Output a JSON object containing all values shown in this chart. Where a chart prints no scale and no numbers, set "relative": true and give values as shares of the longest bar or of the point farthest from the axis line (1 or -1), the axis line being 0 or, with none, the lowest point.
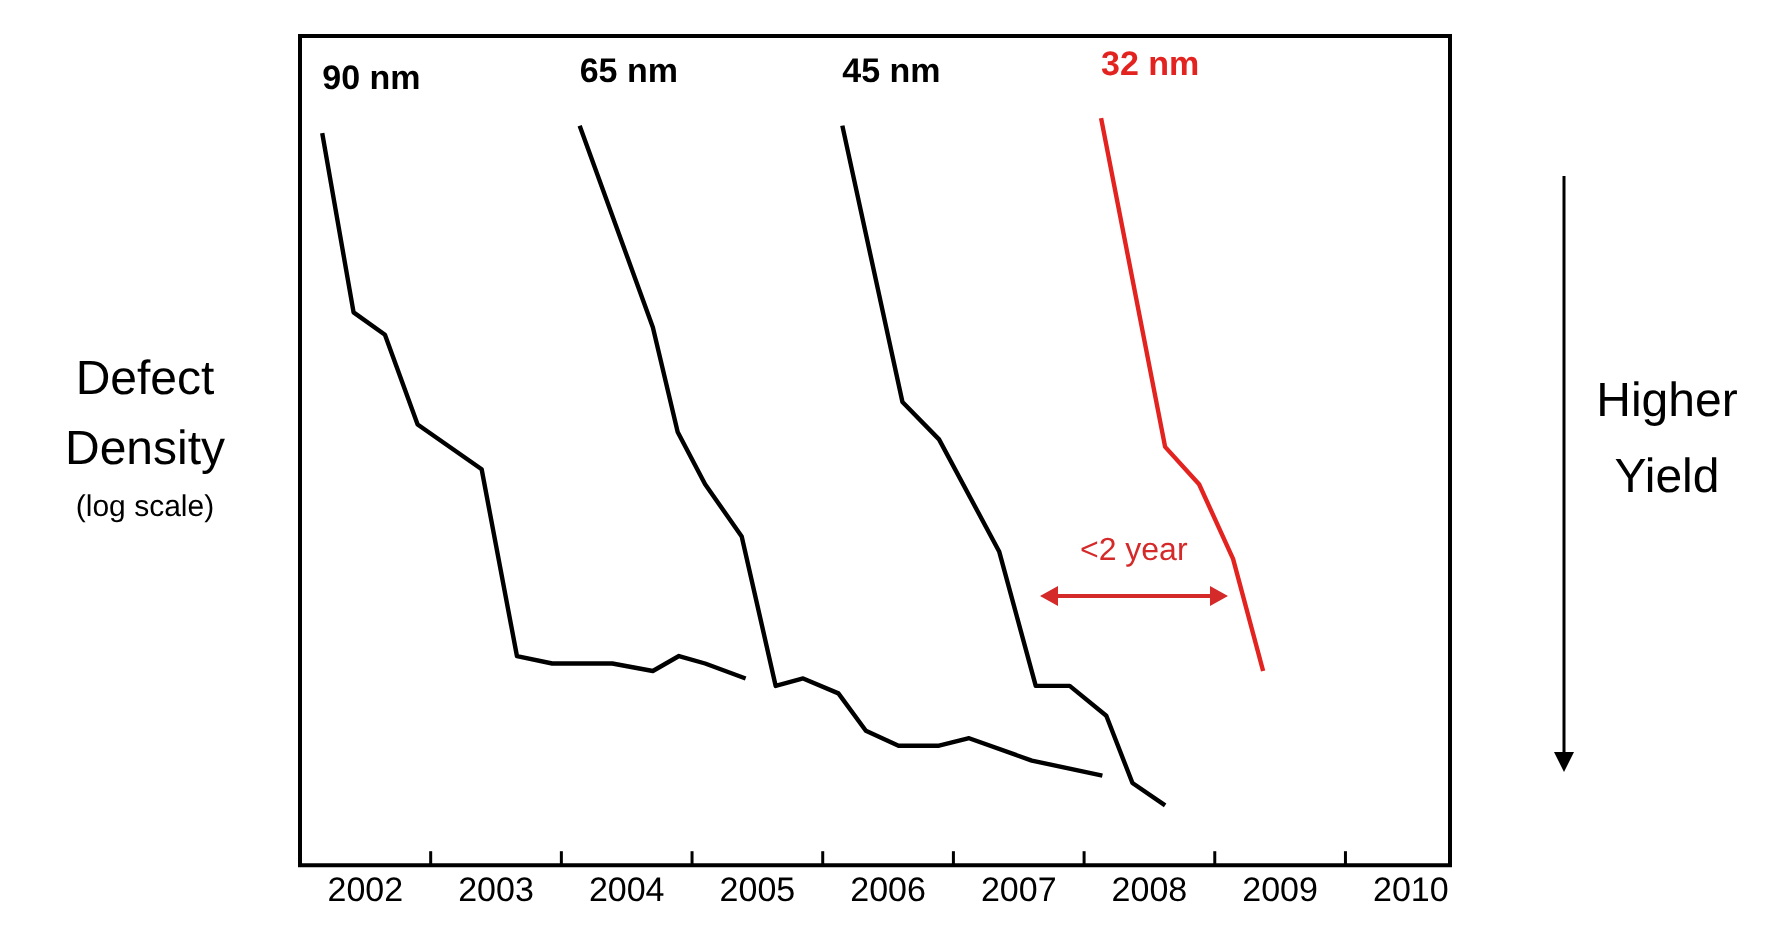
{
  "chart_data": {
    "type": "line",
    "ylabel": "Defect Density",
    "relative": true,
    "legend": false,
    "grid": false,
    "xlim": [
      2002,
      2010.8
    ],
    "xticks": [
      {
        "value": 2002.5,
        "label": "2002"
      },
      {
        "value": 2003.5,
        "label": "2003"
      },
      {
        "value": 2004.5,
        "label": "2004"
      },
      {
        "value": 2005.5,
        "label": "2005"
      },
      {
        "value": 2006.5,
        "label": "2006"
      },
      {
        "value": 2007.5,
        "label": "2007"
      },
      {
        "value": 2008.5,
        "label": "2008"
      },
      {
        "value": 2009.5,
        "label": "2009"
      },
      {
        "value": 2010.5,
        "label": "2010"
      },
      {
        "value": 2003,
        "label": null
      },
      {
        "value": 2004,
        "label": null
      },
      {
        "value": 2005,
        "label": null
      },
      {
        "value": 2006,
        "label": null
      },
      {
        "value": 2007,
        "label": null
      },
      {
        "value": 2008,
        "label": null
      },
      {
        "value": 2009,
        "label": null
      },
      {
        "value": 2010,
        "label": null
      }
    ],
    "series": [
      {
        "name": "90 nm",
        "color": "#000000",
        "x": [
          2002.17,
          2002.41,
          2002.65,
          2002.9,
          2003.39,
          2003.66,
          2003.93,
          2004.39,
          2004.7,
          2004.9,
          2005.1,
          2005.41
        ],
        "values": [
          0.98,
          0.74,
          0.71,
          0.59,
          0.53,
          0.28,
          0.27,
          0.27,
          0.26,
          0.28,
          0.27,
          0.25
        ]
      },
      {
        "name": "65 nm",
        "color": "#000000",
        "x": [
          2004.14,
          2004.7,
          2004.89,
          2005.1,
          2005.38,
          2005.64,
          2005.85,
          2006.12,
          2006.33,
          2006.58,
          2006.89,
          2007.12,
          2007.6,
          2008.14
        ],
        "values": [
          0.99,
          0.72,
          0.58,
          0.51,
          0.44,
          0.24,
          0.25,
          0.23,
          0.18,
          0.16,
          0.16,
          0.17,
          0.14,
          0.12
        ]
      },
      {
        "name": "45 nm",
        "color": "#000000",
        "x": [
          2006.15,
          2006.61,
          2006.89,
          2007.35,
          2007.63,
          2007.89,
          2008.17,
          2008.37,
          2008.62
        ],
        "values": [
          0.99,
          0.62,
          0.57,
          0.42,
          0.24,
          0.24,
          0.2,
          0.11,
          0.08
        ]
      },
      {
        "name": "32 nm",
        "color": "#e2231f",
        "x": [
          2008.13,
          2008.62,
          2008.88,
          2009.14,
          2009.37
        ],
        "values": [
          1,
          0.56,
          0.51,
          0.41,
          0.26
        ]
      }
    ],
    "annotations": [
      "<2 year",
      "(log scale)",
      "Higher Yield"
    ]
  }
}
